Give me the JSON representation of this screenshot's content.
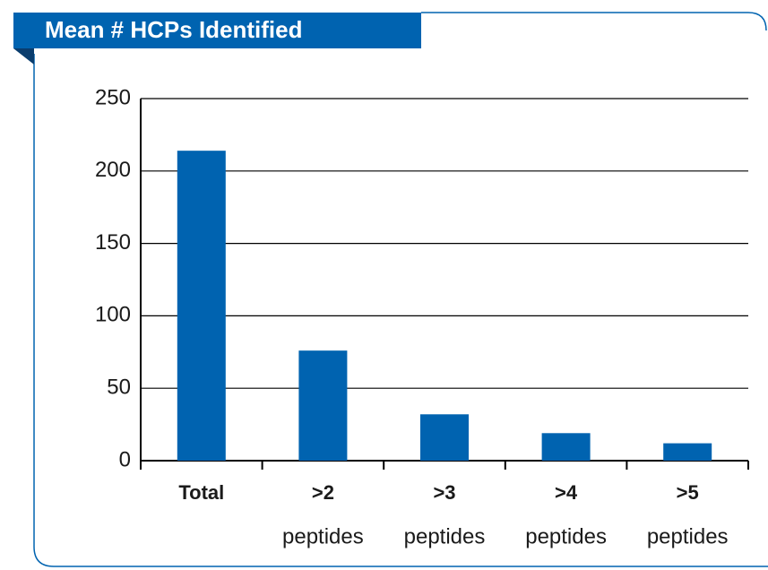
{
  "chart_data": {
    "type": "bar",
    "title": "Mean # HCPs Identified",
    "categories": [
      [
        "Total"
      ],
      [
        ">2",
        "peptides"
      ],
      [
        ">3",
        "peptides"
      ],
      [
        ">4",
        "peptides"
      ],
      [
        ">5",
        "peptides"
      ]
    ],
    "values": [
      214,
      76,
      32,
      19,
      12
    ],
    "color": "#0063b0",
    "ylim": [
      0,
      250
    ],
    "yticks": [
      0,
      50,
      100,
      150,
      200,
      250
    ],
    "grid": true
  }
}
